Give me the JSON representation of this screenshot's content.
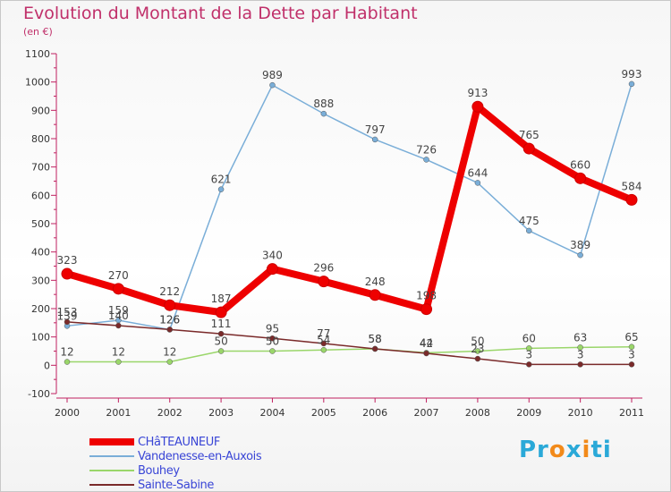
{
  "title": "Evolution du Montant de la Dette par Habitant",
  "subtitle": "(en €)",
  "logo_text": "Proxiti",
  "chart_data": {
    "type": "line",
    "title": "Evolution du Montant de la Dette par Habitant",
    "ylabel": "(en €)",
    "categories": [
      "2000",
      "2001",
      "2002",
      "2003",
      "2004",
      "2005",
      "2006",
      "2007",
      "2008",
      "2009",
      "2010",
      "2011"
    ],
    "ylim": [
      -100,
      1100
    ],
    "yticks": [
      "-100",
      "0",
      "100",
      "200",
      "300",
      "400",
      "500",
      "600",
      "700",
      "800",
      "900",
      "1000",
      "1100"
    ],
    "grid": false,
    "legend_position": "bottom-left",
    "series": [
      {
        "name": "CHâTEAUNEUF",
        "color": "#ee0000",
        "values": [
          323,
          270,
          212,
          187,
          340,
          296,
          248,
          198,
          913,
          765,
          660,
          584
        ],
        "labels": [
          "323",
          "270",
          "212",
          "187",
          "340",
          "296",
          "248",
          "198",
          "913",
          "765",
          "660",
          "584"
        ]
      },
      {
        "name": "Vandenesse-en-Auxois",
        "color": "#7aaed8",
        "values": [
          139,
          159,
          126,
          621,
          989,
          888,
          797,
          726,
          644,
          475,
          389,
          993
        ],
        "labels": [
          "139",
          "159",
          "126",
          "621",
          "989",
          "888",
          "797",
          "726",
          "644",
          "475",
          "389",
          "993"
        ]
      },
      {
        "name": "Bouhey",
        "color": "#9ad66a",
        "values": [
          12,
          12,
          12,
          50,
          50,
          54,
          58,
          44,
          50,
          60,
          63,
          65
        ],
        "labels": [
          "12",
          "12",
          "12",
          "50",
          "50",
          "54",
          "58",
          "44",
          "50",
          "60",
          "63",
          "65"
        ]
      },
      {
        "name": "Sainte-Sabine",
        "color": "#7a2a2a",
        "values": [
          153,
          140,
          126,
          111,
          95,
          77,
          58,
          42,
          23,
          3,
          3,
          3
        ],
        "labels": [
          "153",
          "140",
          "126",
          "111",
          "95",
          "77",
          "58",
          "42",
          "23",
          "3",
          "3",
          "3"
        ]
      }
    ]
  }
}
